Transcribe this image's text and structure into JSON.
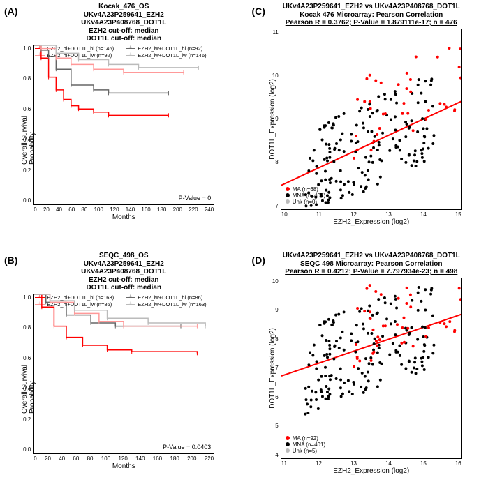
{
  "panelA": {
    "label": "(A)",
    "titles": [
      "Kocak_476_OS",
      "UKv4A23P259641_EZH2",
      "UKv4A23P408768_DOT1L",
      "EZH2 cut-off: median",
      "DOT1L cut-off: median"
    ],
    "ylabel": "Overall Survival Probability",
    "xlabel": "Months",
    "xlim": [
      0,
      240
    ],
    "xticks": [
      0,
      20,
      40,
      60,
      80,
      100,
      120,
      140,
      160,
      180,
      200,
      220,
      240
    ],
    "ylim": [
      0,
      1
    ],
    "yticks": [
      "0.0",
      "0.2",
      "0.4",
      "0.6",
      "0.8",
      "1.0"
    ],
    "pvalue": "P-Value = 0",
    "legend": [
      {
        "label": "EZH2_hi+DOT1L_hi (n=146)",
        "color": "#ff0000"
      },
      {
        "label": "EZH2_lw+DOT1L_hi (n=92)",
        "color": "#666666"
      },
      {
        "label": "EZH2_hi+DOT1L_lw (n=92)",
        "color": "#ff9999"
      },
      {
        "label": "EZH2_lw+DOT1L_lw (n=146)",
        "color": "#bbbbbb"
      }
    ],
    "curves": {
      "red": [
        [
          0,
          1
        ],
        [
          10,
          0.92
        ],
        [
          20,
          0.8
        ],
        [
          30,
          0.72
        ],
        [
          40,
          0.66
        ],
        [
          50,
          0.62
        ],
        [
          60,
          0.6
        ],
        [
          80,
          0.58
        ],
        [
          100,
          0.56
        ],
        [
          180,
          0.56
        ]
      ],
      "dgray": [
        [
          0,
          1
        ],
        [
          10,
          0.97
        ],
        [
          20,
          0.93
        ],
        [
          30,
          0.85
        ],
        [
          50,
          0.75
        ],
        [
          80,
          0.72
        ],
        [
          100,
          0.7
        ],
        [
          180,
          0.7
        ]
      ],
      "pink": [
        [
          0,
          1
        ],
        [
          10,
          0.98
        ],
        [
          30,
          0.92
        ],
        [
          50,
          0.88
        ],
        [
          80,
          0.85
        ],
        [
          120,
          0.83
        ],
        [
          200,
          0.83
        ]
      ],
      "lgray": [
        [
          0,
          1
        ],
        [
          30,
          0.95
        ],
        [
          60,
          0.91
        ],
        [
          100,
          0.88
        ],
        [
          140,
          0.86
        ],
        [
          220,
          0.86
        ]
      ]
    }
  },
  "panelB": {
    "label": "(B)",
    "titles": [
      "SEQC_498_OS",
      "UKv4A23P259641_EZH2",
      "UKv4A23P408768_DOT1L",
      "EZH2 cut-off: median",
      "DOT1L cut-off: median"
    ],
    "ylabel": "Overall Survival Probability",
    "xlabel": "Months",
    "xlim": [
      0,
      220
    ],
    "xticks": [
      0,
      20,
      40,
      60,
      80,
      100,
      120,
      140,
      160,
      180,
      200,
      220
    ],
    "ylim": [
      0,
      1
    ],
    "yticks": [
      "0.0",
      "0.2",
      "0.4",
      "0.6",
      "0.8",
      "1.0"
    ],
    "pvalue": "P-Value = 0.0403",
    "legend": [
      {
        "label": "EZH2_hi+DOT1L_hi (n=163)",
        "color": "#ff0000"
      },
      {
        "label": "EZH2_lw+DOT1L_hi (n=86)",
        "color": "#666666"
      },
      {
        "label": "EZH2_hi+DOT1L_lw (n=86)",
        "color": "#ff9999"
      },
      {
        "label": "EZH2_lw+DOT1L_lw (n=163)",
        "color": "#bbbbbb"
      }
    ],
    "curves": {
      "red": [
        [
          0,
          1
        ],
        [
          10,
          0.92
        ],
        [
          25,
          0.8
        ],
        [
          40,
          0.73
        ],
        [
          60,
          0.68
        ],
        [
          90,
          0.65
        ],
        [
          120,
          0.64
        ],
        [
          200,
          0.63
        ]
      ],
      "dgray": [
        [
          0,
          1
        ],
        [
          15,
          0.95
        ],
        [
          40,
          0.87
        ],
        [
          70,
          0.82
        ],
        [
          100,
          0.8
        ],
        [
          180,
          0.8
        ]
      ],
      "pink": [
        [
          0,
          1
        ],
        [
          20,
          0.95
        ],
        [
          50,
          0.88
        ],
        [
          80,
          0.83
        ],
        [
          110,
          0.8
        ],
        [
          200,
          0.8
        ]
      ],
      "lgray": [
        [
          0,
          1
        ],
        [
          20,
          0.96
        ],
        [
          50,
          0.9
        ],
        [
          90,
          0.85
        ],
        [
          140,
          0.82
        ],
        [
          210,
          0.8
        ]
      ]
    }
  },
  "panelC": {
    "label": "(C)",
    "titles": [
      "UKv4A23P259641_EZH2 vs UKv4A23P408768_DOT1L",
      "Kocak 476 Microarray: Pearson Correlation",
      "Pearson R = 0.3762; P-Value = 1.879111e-17; n = 476"
    ],
    "ylabel": "DOT1L_Expression (log2)",
    "xlabel": "EZH2_Expression (log2)",
    "xlim": [
      9.5,
      15.5
    ],
    "xticks": [
      10,
      11,
      12,
      13,
      14,
      15
    ],
    "ylim": [
      7,
      11.5
    ],
    "yticks": [
      7,
      8,
      9,
      10,
      11
    ],
    "regline": [
      [
        9.5,
        7.6
      ],
      [
        15.5,
        9.7
      ]
    ],
    "regcolor": "#ff0000",
    "legend": [
      {
        "label": "MA (n=68)",
        "color": "#ff0000"
      },
      {
        "label": "MNA (n=408)",
        "color": "#000000"
      },
      {
        "label": "Unk (n=0)",
        "color": "#bbbbbb"
      }
    ]
  },
  "panelD": {
    "label": "(D)",
    "titles": [
      "UKv4A23P259641_EZH2 vs UKv4A23P408768_DOT1L",
      "SEQC 498 Microarray: Pearson Correlation",
      "Pearson R = 0.4212; P-Value = 7.797934e-23; n = 498"
    ],
    "ylabel": "DOT1L_Expression (log2)",
    "xlabel": "EZH2_Expression (log2)",
    "xlim": [
      10.5,
      16.5
    ],
    "xticks": [
      11,
      12,
      13,
      14,
      15,
      16
    ],
    "ylim": [
      4,
      11
    ],
    "yticks": [
      4,
      5,
      6,
      7,
      8,
      9,
      10
    ],
    "regline": [
      [
        10.5,
        7.2
      ],
      [
        16.5,
        9.6
      ]
    ],
    "regcolor": "#ff0000",
    "legend": [
      {
        "label": "MA (n=92)",
        "color": "#ff0000"
      },
      {
        "label": "MNA (n=401)",
        "color": "#000000"
      },
      {
        "label": "Unk (n=5)",
        "color": "#bbbbbb"
      }
    ]
  },
  "colors": {
    "red": "#ff0000",
    "dgray": "#666666",
    "pink": "#ff9999",
    "lgray": "#bbbbbb",
    "black": "#000000"
  }
}
